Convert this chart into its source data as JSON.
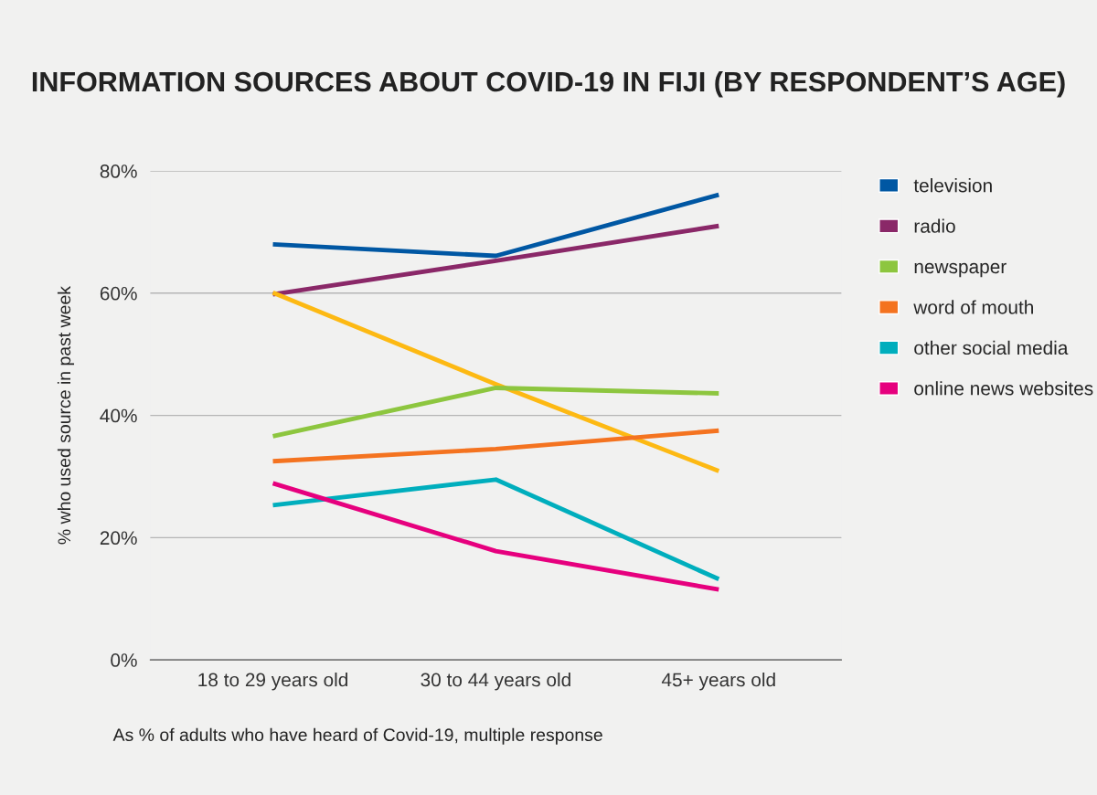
{
  "chart_data": {
    "type": "line",
    "title": "INFORMATION SOURCES ABOUT COVID-19 IN FIJI (BY RESPONDENT’S AGE)",
    "ylabel": "% who used source in past week",
    "categories": [
      "18 to 29 years old",
      "30 to 44 years old",
      "45+ years old"
    ],
    "series": [
      {
        "name": "television",
        "color": "#0057a3",
        "values": [
          68.0,
          66.1,
          76.1
        ]
      },
      {
        "name": "radio",
        "color": "#8a2868",
        "values": [
          59.8,
          65.3,
          71.0
        ]
      },
      {
        "color": "#fdb913",
        "values": [
          60.1,
          45.1,
          30.9
        ]
      },
      {
        "name": "newspaper",
        "color": "#8dc63f",
        "values": [
          36.6,
          44.5,
          43.6
        ]
      },
      {
        "name": "word of mouth",
        "color": "#f47320",
        "values": [
          32.5,
          34.5,
          37.5
        ]
      },
      {
        "name": "other social media",
        "color": "#00aebd",
        "values": [
          25.3,
          29.5,
          13.2
        ]
      },
      {
        "name": "online news websites",
        "color": "#e6007e",
        "values": [
          28.9,
          17.8,
          11.5
        ]
      }
    ],
    "ylim": [
      0,
      80
    ],
    "yticks": [
      {
        "value": 0,
        "label": "0%"
      },
      {
        "value": 20,
        "label": "20%"
      },
      {
        "value": 40,
        "label": "40%"
      },
      {
        "value": 60,
        "label": "60%"
      },
      {
        "value": 80,
        "label": "80%"
      }
    ],
    "grid": "y",
    "legend": "right",
    "marker": "none",
    "line_style": "solid",
    "annotations": [
      "As % of adults who have heard of Covid-19, multiple response"
    ]
  }
}
